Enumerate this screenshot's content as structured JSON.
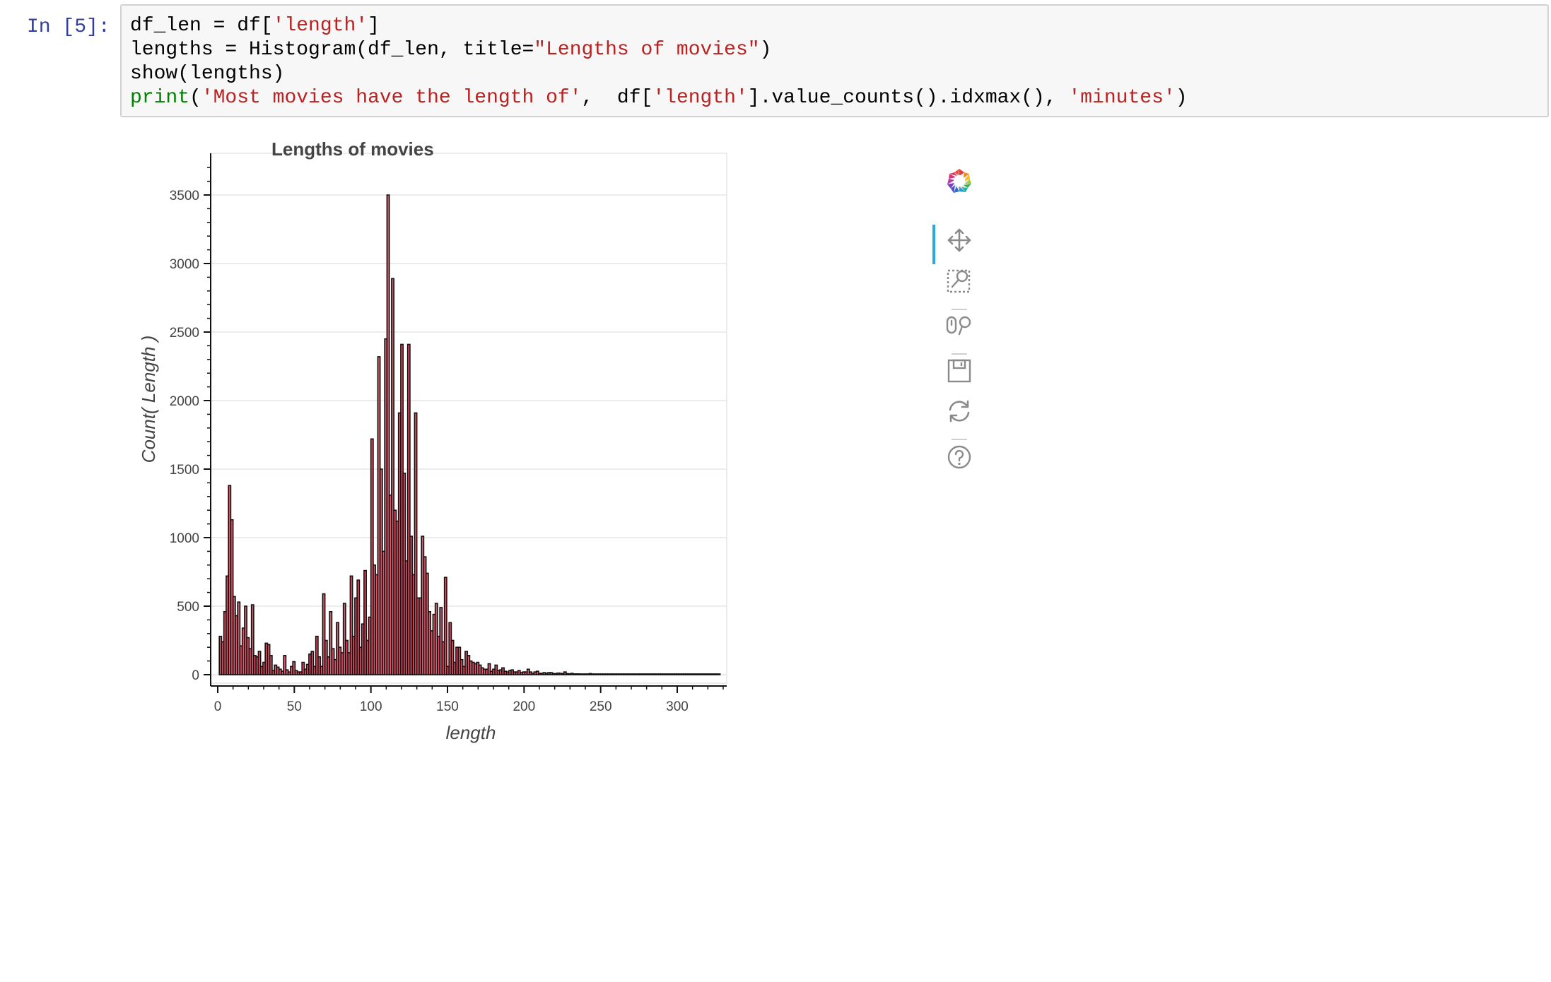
{
  "cell": {
    "prompt": "In [5]:",
    "code_lines": [
      [
        {
          "t": "df_len = df[",
          "c": ""
        },
        {
          "t": "'length'",
          "c": "str"
        },
        {
          "t": "]",
          "c": ""
        }
      ],
      [
        {
          "t": "lengths = Histogram(df_len, title=",
          "c": ""
        },
        {
          "t": "\"Lengths of movies\"",
          "c": "str"
        },
        {
          "t": ")",
          "c": ""
        }
      ],
      [
        {
          "t": "show(lengths)",
          "c": ""
        }
      ],
      [
        {
          "t": "print",
          "c": "builtin"
        },
        {
          "t": "(",
          "c": ""
        },
        {
          "t": "'Most movies have the length of'",
          "c": "str"
        },
        {
          "t": ",  df[",
          "c": ""
        },
        {
          "t": "'length'",
          "c": "str"
        },
        {
          "t": "].value_counts().idxmax(), ",
          "c": ""
        },
        {
          "t": "'minutes'",
          "c": "str"
        },
        {
          "t": ")",
          "c": ""
        }
      ]
    ]
  },
  "toolbar": {
    "tools": [
      "bokeh-logo-icon",
      "pan-icon",
      "box-zoom-icon",
      "wheel-zoom-icon",
      "save-icon",
      "reset-icon",
      "help-icon"
    ],
    "active_color": "#26aae1"
  },
  "chart_data": {
    "type": "bar",
    "title": "Lengths of movies",
    "xlabel": "length",
    "ylabel": "Count( Length )",
    "xlim": [
      -5,
      333
    ],
    "ylim": [
      -80,
      3780
    ],
    "xticks": [
      0,
      50,
      100,
      150,
      200,
      250,
      300
    ],
    "yticks": [
      0,
      500,
      1000,
      1500,
      2000,
      2500,
      3000,
      3500
    ],
    "grid": true,
    "bin_width": 1.5,
    "bar_fill": "#e8556b",
    "bar_line": "#111111",
    "bins_start": [
      1,
      2.5,
      4,
      5.5,
      7,
      8.5,
      10,
      11.5,
      13,
      14.5,
      16,
      17.5,
      19,
      20.5,
      22,
      23.5,
      25,
      26.5,
      28,
      29.5,
      31,
      32.5,
      34,
      35.5,
      37,
      38.5,
      40,
      41.5,
      43,
      44.5,
      46,
      47.5,
      49,
      50.5,
      52,
      53.5,
      55,
      56.5,
      58,
      59.5,
      61,
      62.5,
      64,
      65.5,
      67,
      68.5,
      70,
      71.5,
      73,
      74.5,
      76,
      77.5,
      79,
      80.5,
      82,
      83.5,
      85,
      86.5,
      88,
      89.5,
      91,
      92.5,
      94,
      95.5,
      97,
      98.5,
      100,
      101.5,
      103,
      104.5,
      106,
      107.5,
      109,
      110.5,
      112,
      113.5,
      115,
      116.5,
      118,
      119.5,
      121,
      122.5,
      124,
      125.5,
      127,
      128.5,
      130,
      131.5,
      133,
      134.5,
      136,
      137.5,
      139,
      140.5,
      142,
      143.5,
      145,
      146.5,
      148,
      149.5,
      151,
      152.5,
      154,
      155.5,
      157,
      158.5,
      160,
      161.5,
      163,
      164.5,
      166,
      167.5,
      169,
      170.5,
      172,
      173.5,
      175,
      176.5,
      178,
      179.5,
      181,
      182.5,
      184,
      185.5,
      187,
      188.5,
      190,
      191.5,
      193,
      194.5,
      196,
      197.5,
      199,
      200.5,
      202,
      203.5,
      205,
      206.5,
      208,
      209.5,
      211,
      212.5,
      214,
      215.5,
      217,
      218.5,
      220,
      221.5,
      223,
      224.5,
      226,
      227.5,
      229,
      230.5,
      232,
      233.5,
      235,
      236.5,
      238,
      239.5,
      241,
      242.5,
      244,
      245.5,
      247,
      248.5,
      250,
      251.5,
      253,
      254.5,
      256,
      257.5,
      259,
      260.5,
      262,
      263.5,
      265,
      266.5,
      268,
      269.5,
      271,
      272.5,
      274,
      275.5,
      277,
      278.5,
      280,
      281.5,
      283,
      284.5,
      286,
      287.5,
      289,
      290.5,
      292,
      293.5,
      295,
      296.5,
      298,
      299.5,
      301,
      302.5,
      304,
      305.5,
      307,
      308.5,
      310,
      311.5,
      313,
      314.5,
      316,
      317.5,
      319,
      320.5,
      322,
      323.5,
      325,
      326.5
    ],
    "values": [
      280,
      240,
      460,
      720,
      1380,
      1130,
      570,
      430,
      530,
      210,
      340,
      500,
      270,
      190,
      510,
      140,
      130,
      170,
      60,
      90,
      230,
      220,
      140,
      30,
      70,
      55,
      40,
      25,
      140,
      35,
      20,
      60,
      95,
      30,
      20,
      20,
      90,
      40,
      75,
      150,
      170,
      60,
      280,
      130,
      60,
      590,
      250,
      130,
      460,
      190,
      110,
      380,
      200,
      160,
      520,
      250,
      160,
      720,
      280,
      560,
      690,
      200,
      370,
      760,
      250,
      420,
      1720,
      800,
      730,
      2320,
      1500,
      900,
      2450,
      3500,
      1310,
      2890,
      1200,
      1120,
      1910,
      2410,
      1470,
      830,
      2410,
      1010,
      730,
      1910,
      560,
      560,
      1010,
      860,
      740,
      460,
      320,
      440,
      520,
      280,
      490,
      240,
      710,
      60,
      380,
      250,
      90,
      200,
      200,
      110,
      60,
      170,
      140,
      100,
      90,
      80,
      90,
      70,
      50,
      40,
      40,
      80,
      25,
      40,
      70,
      30,
      35,
      50,
      25,
      20,
      30,
      35,
      20,
      20,
      30,
      15,
      20,
      20,
      40,
      20,
      10,
      20,
      25,
      10,
      10,
      15,
      10,
      15,
      15,
      8,
      8,
      12,
      10,
      8,
      20,
      8,
      6,
      10,
      6,
      6,
      6,
      5,
      5,
      5,
      4,
      8,
      4,
      4,
      4,
      3,
      3,
      3,
      3,
      3,
      2,
      2,
      2,
      2,
      2,
      2,
      2,
      2,
      2,
      2,
      2,
      2,
      1,
      1,
      1,
      1,
      1,
      1,
      1,
      1,
      1,
      1,
      1,
      1,
      1,
      1,
      1,
      1,
      1,
      1,
      1,
      1,
      1,
      1,
      1,
      1,
      1,
      1,
      1,
      1,
      1,
      1,
      1,
      1,
      1,
      1,
      1,
      1,
      1,
      1,
      1,
      1,
      1,
      1,
      1,
      1,
      1,
      1
    ]
  }
}
